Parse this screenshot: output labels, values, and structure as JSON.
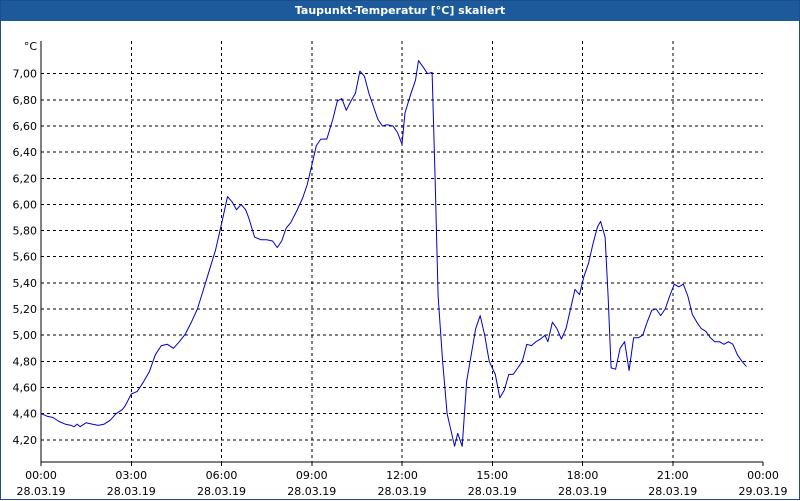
{
  "window": {
    "title": "Taupunkt-Temperatur [°C] skaliert"
  },
  "colors": {
    "line": "#0000cc",
    "grid": "#000000",
    "title_bar": "#1c5a9c"
  },
  "chart_data": {
    "type": "line",
    "title": "Taupunkt-Temperatur [°C] skaliert",
    "y_unit": "°C",
    "ylim": [
      4.03,
      7.25
    ],
    "y_ticks": [
      4.2,
      4.4,
      4.6,
      4.8,
      5.0,
      5.2,
      5.4,
      5.6,
      5.8,
      6.0,
      6.2,
      6.4,
      6.6,
      6.8,
      7.0
    ],
    "y_tick_labels": [
      "4,20",
      "4,40",
      "4,60",
      "4,80",
      "5,00",
      "5,20",
      "5,40",
      "5,60",
      "5,80",
      "6,00",
      "6,20",
      "6,40",
      "6,60",
      "6,80",
      "7,00"
    ],
    "xlim": [
      0,
      24
    ],
    "x_ticks": [
      {
        "h": 0,
        "time": "00:00",
        "date": "28.03.19"
      },
      {
        "h": 3,
        "time": "03:00",
        "date": "28.03.19"
      },
      {
        "h": 6,
        "time": "06:00",
        "date": "28.03.19"
      },
      {
        "h": 9,
        "time": "09:00",
        "date": "28.03.19"
      },
      {
        "h": 12,
        "time": "12:00",
        "date": "28.03.19"
      },
      {
        "h": 15,
        "time": "15:00",
        "date": "28.03.19"
      },
      {
        "h": 18,
        "time": "18:00",
        "date": "28.03.19"
      },
      {
        "h": 21,
        "time": "21:00",
        "date": "28.03.19"
      },
      {
        "h": 24,
        "time": "00:00",
        "date": "29.03.19"
      }
    ],
    "grid": true,
    "series": [
      {
        "points": [
          [
            0.0,
            4.4
          ],
          [
            0.2,
            4.38
          ],
          [
            0.4,
            4.37
          ],
          [
            0.6,
            4.34
          ],
          [
            0.8,
            4.32
          ],
          [
            1.0,
            4.31
          ],
          [
            1.1,
            4.3
          ],
          [
            1.2,
            4.32
          ],
          [
            1.3,
            4.3
          ],
          [
            1.5,
            4.33
          ],
          [
            1.7,
            4.32
          ],
          [
            1.9,
            4.31
          ],
          [
            2.1,
            4.32
          ],
          [
            2.3,
            4.35
          ],
          [
            2.5,
            4.4
          ],
          [
            2.7,
            4.43
          ],
          [
            2.8,
            4.46
          ],
          [
            3.0,
            4.55
          ],
          [
            3.2,
            4.57
          ],
          [
            3.4,
            4.64
          ],
          [
            3.6,
            4.72
          ],
          [
            3.8,
            4.85
          ],
          [
            4.0,
            4.92
          ],
          [
            4.2,
            4.93
          ],
          [
            4.4,
            4.9
          ],
          [
            4.6,
            4.95
          ],
          [
            4.8,
            5.01
          ],
          [
            5.0,
            5.1
          ],
          [
            5.2,
            5.2
          ],
          [
            5.4,
            5.35
          ],
          [
            5.6,
            5.5
          ],
          [
            5.8,
            5.65
          ],
          [
            6.0,
            5.85
          ],
          [
            6.2,
            6.06
          ],
          [
            6.35,
            6.02
          ],
          [
            6.5,
            5.96
          ],
          [
            6.65,
            6.0
          ],
          [
            6.8,
            5.96
          ],
          [
            6.9,
            5.9
          ],
          [
            7.1,
            5.75
          ],
          [
            7.3,
            5.73
          ],
          [
            7.5,
            5.73
          ],
          [
            7.7,
            5.72
          ],
          [
            7.85,
            5.67
          ],
          [
            8.0,
            5.72
          ],
          [
            8.15,
            5.82
          ],
          [
            8.3,
            5.86
          ],
          [
            8.5,
            5.95
          ],
          [
            8.7,
            6.05
          ],
          [
            8.85,
            6.15
          ],
          [
            9.0,
            6.3
          ],
          [
            9.15,
            6.45
          ],
          [
            9.3,
            6.5
          ],
          [
            9.5,
            6.5
          ],
          [
            9.7,
            6.65
          ],
          [
            9.85,
            6.79
          ],
          [
            10.0,
            6.81
          ],
          [
            10.15,
            6.72
          ],
          [
            10.3,
            6.79
          ],
          [
            10.45,
            6.85
          ],
          [
            10.6,
            7.02
          ],
          [
            10.75,
            6.98
          ],
          [
            10.9,
            6.85
          ],
          [
            11.05,
            6.75
          ],
          [
            11.2,
            6.65
          ],
          [
            11.35,
            6.6
          ],
          [
            11.5,
            6.61
          ],
          [
            11.7,
            6.6
          ],
          [
            11.85,
            6.55
          ],
          [
            12.0,
            6.46
          ],
          [
            12.1,
            6.7
          ],
          [
            12.3,
            6.85
          ],
          [
            12.45,
            6.95
          ],
          [
            12.55,
            7.1
          ],
          [
            12.7,
            7.05
          ],
          [
            12.85,
            7.0
          ],
          [
            13.0,
            7.01
          ],
          [
            13.1,
            6.2
          ],
          [
            13.2,
            5.3
          ],
          [
            13.35,
            4.8
          ],
          [
            13.5,
            4.4
          ],
          [
            13.65,
            4.25
          ],
          [
            13.75,
            4.15
          ],
          [
            13.85,
            4.25
          ],
          [
            14.0,
            4.15
          ],
          [
            14.15,
            4.65
          ],
          [
            14.3,
            4.85
          ],
          [
            14.45,
            5.05
          ],
          [
            14.6,
            5.15
          ],
          [
            14.75,
            5.0
          ],
          [
            14.9,
            4.8
          ],
          [
            15.0,
            4.75
          ],
          [
            15.1,
            4.7
          ],
          [
            15.25,
            4.52
          ],
          [
            15.4,
            4.58
          ],
          [
            15.55,
            4.7
          ],
          [
            15.7,
            4.7
          ],
          [
            15.85,
            4.75
          ],
          [
            16.0,
            4.8
          ],
          [
            16.15,
            4.93
          ],
          [
            16.3,
            4.92
          ],
          [
            16.45,
            4.95
          ],
          [
            16.6,
            4.97
          ],
          [
            16.75,
            5.0
          ],
          [
            16.85,
            4.95
          ],
          [
            17.0,
            5.1
          ],
          [
            17.15,
            5.05
          ],
          [
            17.3,
            4.97
          ],
          [
            17.45,
            5.05
          ],
          [
            17.6,
            5.2
          ],
          [
            17.75,
            5.35
          ],
          [
            17.9,
            5.31
          ],
          [
            18.05,
            5.45
          ],
          [
            18.2,
            5.55
          ],
          [
            18.35,
            5.7
          ],
          [
            18.5,
            5.83
          ],
          [
            18.6,
            5.87
          ],
          [
            18.75,
            5.75
          ],
          [
            18.85,
            5.3
          ],
          [
            18.95,
            4.75
          ],
          [
            19.1,
            4.74
          ],
          [
            19.25,
            4.9
          ],
          [
            19.4,
            4.95
          ],
          [
            19.55,
            4.73
          ],
          [
            19.7,
            4.98
          ],
          [
            19.85,
            4.98
          ],
          [
            20.0,
            5.0
          ],
          [
            20.15,
            5.1
          ],
          [
            20.3,
            5.19
          ],
          [
            20.45,
            5.2
          ],
          [
            20.6,
            5.15
          ],
          [
            20.75,
            5.2
          ],
          [
            20.9,
            5.3
          ],
          [
            21.05,
            5.39
          ],
          [
            21.2,
            5.37
          ],
          [
            21.35,
            5.39
          ],
          [
            21.5,
            5.3
          ],
          [
            21.65,
            5.16
          ],
          [
            21.8,
            5.1
          ],
          [
            21.95,
            5.05
          ],
          [
            22.1,
            5.03
          ],
          [
            22.25,
            4.98
          ],
          [
            22.4,
            4.95
          ],
          [
            22.55,
            4.95
          ],
          [
            22.7,
            4.93
          ],
          [
            22.85,
            4.95
          ],
          [
            23.0,
            4.93
          ],
          [
            23.15,
            4.85
          ],
          [
            23.3,
            4.8
          ],
          [
            23.45,
            4.76
          ]
        ]
      }
    ]
  }
}
